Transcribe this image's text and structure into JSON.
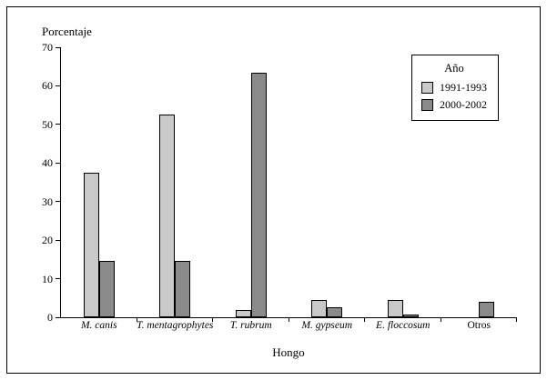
{
  "chart_data": {
    "type": "bar",
    "title": "",
    "ylabel": "Porcentaje",
    "xlabel": "Hongo",
    "ylim": [
      0,
      70
    ],
    "ytick_step": 10,
    "grid": false,
    "categories": [
      {
        "label": "M. canis",
        "italic": true
      },
      {
        "label": "T. mentagrophytes",
        "italic": true
      },
      {
        "label": "T. rubrum",
        "italic": true
      },
      {
        "label": "M. gypseum",
        "italic": true
      },
      {
        "label": "E. floccosum",
        "italic": true
      },
      {
        "label": "Otros",
        "italic": false
      }
    ],
    "series": [
      {
        "name": "1991-1993",
        "color": "#c9c9c9",
        "values": [
          37.5,
          52.5,
          2,
          4.5,
          4.5,
          0
        ]
      },
      {
        "name": "2000-2002",
        "color": "#8a8a8a",
        "values": [
          14.5,
          14.5,
          63.5,
          2.5,
          0.8,
          4
        ]
      }
    ],
    "legend": {
      "title": "Año",
      "position": "top-right"
    }
  }
}
